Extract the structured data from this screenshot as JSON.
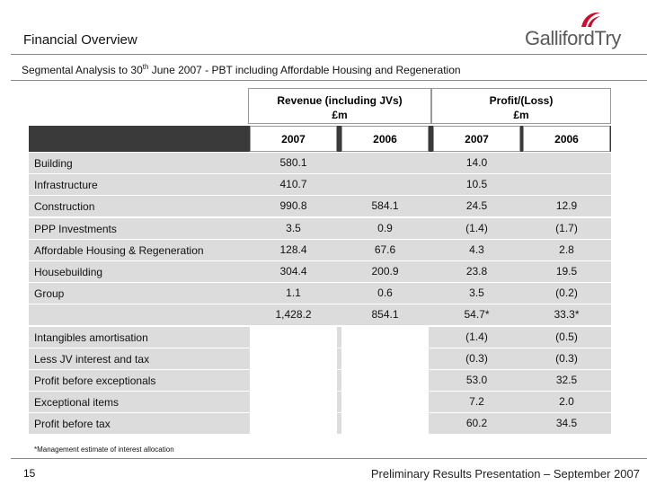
{
  "header": {
    "title": "Financial Overview",
    "logo_text": "GallifordTry",
    "subtitle_prefix": "Segmental Analysis to 30",
    "subtitle_sup": "th",
    "subtitle_suffix": " June 2007 - PBT including Affordable Housing and Regeneration"
  },
  "table": {
    "group_revenue_line1": "Revenue (including JVs)",
    "group_revenue_line2": "£m",
    "group_profit_line1": "Profit/(Loss)",
    "group_profit_line2": "£m",
    "years": [
      "2007",
      "2006",
      "2007",
      "2006"
    ],
    "rows": [
      {
        "label": "Building",
        "v": [
          "580.1",
          "",
          "14.0",
          ""
        ]
      },
      {
        "label": "Infrastructure",
        "v": [
          "410.7",
          "",
          "10.5",
          ""
        ]
      },
      {
        "label": "Construction",
        "v": [
          "990.8",
          "584.1",
          "24.5",
          "12.9"
        ]
      },
      {
        "label": "PPP Investments",
        "v": [
          "3.5",
          "0.9",
          "(1.4)",
          "(1.7)"
        ]
      },
      {
        "label": "Affordable Housing & Regeneration",
        "v": [
          "128.4",
          "67.6",
          "4.3",
          "2.8"
        ]
      },
      {
        "label": "Housebuilding",
        "v": [
          "304.4",
          "200.9",
          "23.8",
          "19.5"
        ]
      },
      {
        "label": "Group",
        "v": [
          "1.1",
          "0.6",
          "3.5",
          "(0.2)"
        ]
      },
      {
        "label": "",
        "v": [
          "1,428.2",
          "854.1",
          "54.7*",
          "33.3*"
        ]
      },
      {
        "label": "Intangibles amortisation",
        "v": [
          "",
          "",
          "(1.4)",
          "(0.5)"
        ]
      },
      {
        "label": "Less JV interest and tax",
        "v": [
          "",
          "",
          "(0.3)",
          "(0.3)"
        ]
      },
      {
        "label": "Profit  before exceptionals",
        "v": [
          "",
          "",
          "53.0",
          "32.5"
        ]
      },
      {
        "label": "Exceptional items",
        "v": [
          "",
          "",
          "7.2",
          "2.0"
        ]
      },
      {
        "label": "Profit before tax",
        "v": [
          "",
          "",
          "60.2",
          "34.5"
        ]
      }
    ]
  },
  "footnote": "*Management estimate of interest allocation",
  "footer": {
    "page_number": "15",
    "presentation": "Preliminary Results Presentation – September 2007"
  },
  "colors": {
    "logo_red": "#c8102e",
    "row_grey": "#dcdcdc",
    "header_bar": "#3a3a3a"
  }
}
